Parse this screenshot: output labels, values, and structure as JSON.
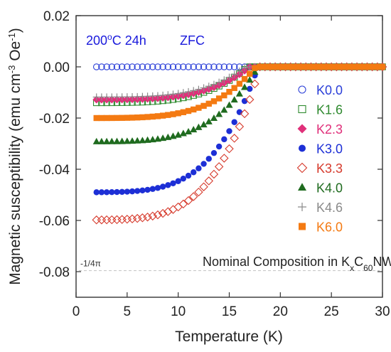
{
  "chart_data": {
    "type": "scatter",
    "xlabel": "Temperature (K)",
    "ylabel": "Magnetic susceptibility (emu cm",
    "ylabel_sup1": "-3",
    "ylabel_mid": " Oe",
    "ylabel_sup2": "-1",
    "ylabel_end": ")",
    "xlim": [
      0,
      30
    ],
    "ylim": [
      -0.09,
      0.02
    ],
    "xticks": [
      0,
      5,
      10,
      15,
      20,
      25,
      30
    ],
    "xtick_labels": [
      "0",
      "5",
      "10",
      "15",
      "20",
      "25",
      "30"
    ],
    "yticks": [
      0.02,
      0.0,
      -0.02,
      -0.04,
      -0.06,
      -0.08
    ],
    "ytick_labels": [
      "0.02",
      "0.00",
      "-0.02",
      "-0.04",
      "-0.06",
      "-0.08"
    ],
    "annotations": {
      "condition_pre": "200",
      "condition_sup": "o",
      "condition_post": "C 24h",
      "mode": "ZFC",
      "nominal_pre": "Nominal Composition in K",
      "nominal_sub1": "x",
      "nominal_mid": "C",
      "nominal_sub2": "60",
      "nominal_post": "NWs"
    },
    "reference_line": {
      "label": "-1/4π",
      "y": -0.0796
    },
    "legend_position": "right",
    "series": [
      {
        "name": "K0.0",
        "marker": "open-circle",
        "color": "#2a3ed8",
        "Tc": 0,
        "low_value": 0.0
      },
      {
        "name": "K1.6",
        "marker": "open-square",
        "color": "#2f8a2f",
        "Tc": 16.8,
        "low_value": -0.014
      },
      {
        "name": "K2.3",
        "marker": "diamond",
        "color": "#e0307a",
        "Tc": 17.0,
        "low_value": -0.0128
      },
      {
        "name": "K3.0",
        "marker": "circle",
        "color": "#1d2fd6",
        "Tc": 17.8,
        "low_value": -0.049
      },
      {
        "name": "K3.3",
        "marker": "open-diamond",
        "color": "#d63a2c",
        "Tc": 18.0,
        "low_value": -0.0598
      },
      {
        "name": "K4.0",
        "marker": "triangle",
        "color": "#1f6b1f",
        "Tc": 17.8,
        "low_value": -0.0292
      },
      {
        "name": "K4.6",
        "marker": "plus",
        "color": "#8a8a8a",
        "Tc": 16.6,
        "low_value": -0.0118
      },
      {
        "name": "K6.0",
        "marker": "square",
        "color": "#f47a12",
        "Tc": 17.6,
        "low_value": -0.02
      }
    ]
  }
}
